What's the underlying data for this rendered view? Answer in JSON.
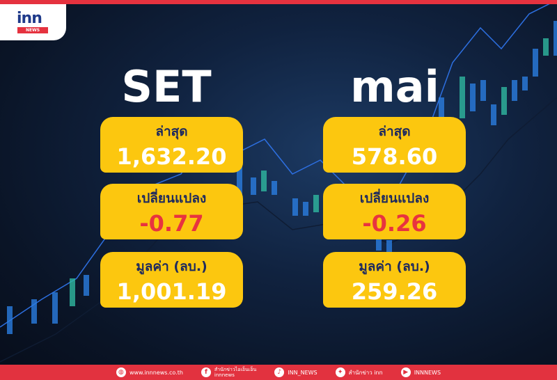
{
  "brand": {
    "logo_text": "inn",
    "logo_sub": "NEWS",
    "accent": "#e5323f",
    "card_color": "#fcc70f"
  },
  "set": {
    "title": "SET",
    "latest_label": "ล่าสุด",
    "latest": "1,632.20",
    "change_label": "เปลี่ยนแปลง",
    "change": "-0.77",
    "value_label": "มูลค่า (ลบ.)",
    "value": "1,001.19"
  },
  "mai": {
    "title": "mai",
    "latest_label": "ล่าสุด",
    "latest": "578.60",
    "change_label": "เปลี่ยนแปลง",
    "change": "-0.26",
    "value_label": "มูลค่า (ลบ.)",
    "value": "259.26"
  },
  "footer": {
    "website": "www.innnews.co.th",
    "facebook_line1": "สำนักข่าวไอเอ็นเอ็น",
    "facebook_line2": "innnews",
    "tiktok": "INN_NEWS",
    "twitter": "สำนักข่าว inn",
    "youtube": "INNNEWS"
  }
}
